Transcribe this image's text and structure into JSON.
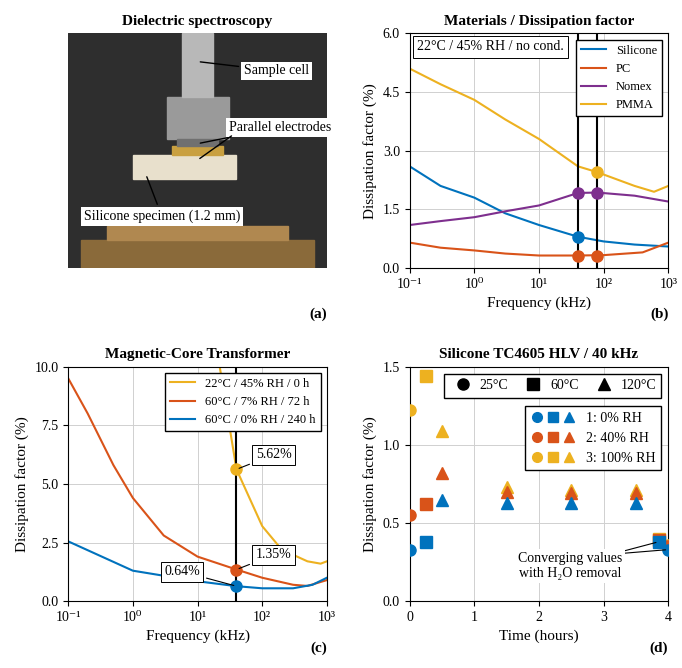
{
  "chart_data": [
    {
      "type": "image",
      "title": "Dielectric spectroscopy",
      "panel": "(a)",
      "annotations": [
        {
          "text": "Sample cell"
        },
        {
          "text": "Parallel electrodes"
        },
        {
          "text": "Silicone specimen (1.2 mm)"
        }
      ]
    },
    {
      "type": "line",
      "title": "Materials / Dissipation factor",
      "panel": "(b)",
      "x_label": "Frequency (kHz)",
      "y_label": "Dissipation factor (%)",
      "note": "22°C / 45% RH / no cond.",
      "log": "x",
      "grid": true,
      "legend": "upper right",
      "xlim": [
        0.1,
        1000
      ],
      "ylim": [
        0.0,
        6.0
      ],
      "xticks": [
        {
          "value": 0.1,
          "label": "10⁻¹"
        },
        {
          "value": 1,
          "label": "10⁰"
        },
        {
          "value": 10,
          "label": "10¹"
        },
        {
          "value": 100,
          "label": "10²"
        },
        {
          "value": 1000,
          "label": "10³"
        }
      ],
      "yticks": [
        0.0,
        1.5,
        3.0,
        4.5,
        6.0
      ],
      "vlines": [
        40,
        80
      ],
      "series": [
        {
          "name": "Silicone",
          "color": "#0072bd",
          "x": [
            0.1,
            0.3,
            1,
            3,
            10,
            40,
            100,
            300,
            1000
          ],
          "values": [
            2.6,
            2.1,
            1.8,
            1.4,
            1.1,
            0.8,
            0.68,
            0.6,
            0.55
          ],
          "points": [
            {
              "x": 40,
              "y": 0.8
            }
          ]
        },
        {
          "name": "PC",
          "color": "#d95319",
          "x": [
            0.1,
            0.3,
            1,
            3,
            10,
            40,
            100,
            400,
            1000
          ],
          "values": [
            0.65,
            0.52,
            0.45,
            0.37,
            0.32,
            0.32,
            0.33,
            0.4,
            0.65
          ],
          "points": [
            {
              "x": 40,
              "y": 0.32
            },
            {
              "x": 80,
              "y": 0.32
            }
          ]
        },
        {
          "name": "Nomex",
          "color": "#7e2f8e",
          "x": [
            0.1,
            0.3,
            1,
            3,
            10,
            40,
            80,
            300,
            1000
          ],
          "values": [
            1.1,
            1.2,
            1.3,
            1.45,
            1.6,
            1.92,
            1.93,
            1.85,
            1.7
          ],
          "points": [
            {
              "x": 40,
              "y": 1.92
            },
            {
              "x": 80,
              "y": 1.93
            }
          ]
        },
        {
          "name": "PMMA",
          "color": "#edb120",
          "x": [
            0.1,
            0.3,
            1,
            3,
            10,
            40,
            80,
            300,
            600,
            1000
          ],
          "values": [
            5.1,
            4.7,
            4.3,
            3.8,
            3.3,
            2.6,
            2.45,
            2.1,
            1.95,
            2.1
          ],
          "points": [
            {
              "x": 80,
              "y": 2.45
            }
          ]
        }
      ]
    },
    {
      "type": "line",
      "title": "Magnetic-Core Transformer",
      "panel": "(c)",
      "x_label": "Frequency (kHz)",
      "y_label": "Dissipation factor (%)",
      "log": "x",
      "grid": true,
      "legend": "upper right",
      "xlim": [
        0.1,
        1000
      ],
      "ylim": [
        0.0,
        10.0
      ],
      "xticks": [
        {
          "value": 0.1,
          "label": "10⁻¹"
        },
        {
          "value": 1,
          "label": "10⁰"
        },
        {
          "value": 10,
          "label": "10¹"
        },
        {
          "value": 100,
          "label": "10²"
        },
        {
          "value": 1000,
          "label": "10³"
        }
      ],
      "yticks": [
        0.0,
        2.5,
        5.0,
        7.5,
        10.0
      ],
      "vlines": [
        40
      ],
      "series": [
        {
          "name": "22°C / 45% RH / 0 h",
          "color": "#edb120",
          "x": [
            22,
            40,
            100,
            200,
            500,
            800,
            1000
          ],
          "values": [
            10.0,
            5.62,
            3.2,
            2.2,
            1.7,
            1.6,
            1.7
          ],
          "points": [
            {
              "x": 40,
              "y": 5.62
            }
          ]
        },
        {
          "name": "60°C / 7% RH / 72 h",
          "color": "#d95319",
          "x": [
            0.1,
            0.2,
            0.5,
            1,
            3,
            10,
            40,
            100,
            300,
            500,
            1000
          ],
          "values": [
            9.5,
            8.0,
            5.8,
            4.4,
            2.8,
            1.9,
            1.35,
            1.0,
            0.7,
            0.65,
            0.9
          ],
          "points": [
            {
              "x": 40,
              "y": 1.35
            }
          ]
        },
        {
          "name": "60°C / 0% RH / 240 h",
          "color": "#0072bd",
          "x": [
            0.1,
            1,
            10,
            40,
            100,
            300,
            600,
            1000
          ],
          "values": [
            2.55,
            1.3,
            0.85,
            0.64,
            0.55,
            0.55,
            0.7,
            1.0
          ],
          "points": [
            {
              "x": 40,
              "y": 0.64
            }
          ]
        }
      ],
      "annotations": [
        {
          "x": 40,
          "y": 5.62,
          "text": "5.62%"
        },
        {
          "x": 40,
          "y": 1.35,
          "text": "1.35%"
        },
        {
          "x": 40,
          "y": 0.64,
          "text": "0.64%"
        }
      ]
    },
    {
      "type": "scatter",
      "title": "Silicone TC4605 HLV / 40 kHz",
      "panel": "(d)",
      "x_label": "Time (hours)",
      "y_label": "Dissipation factor (%)",
      "grid": true,
      "legend": "upper right",
      "xlim": [
        0,
        4
      ],
      "ylim": [
        0.0,
        1.5
      ],
      "xticks": [
        0,
        1,
        2,
        3,
        4
      ],
      "yticks": [
        0.0,
        0.5,
        1.0,
        1.5
      ],
      "marker_legend": [
        {
          "marker": "circle",
          "label": "25°C"
        },
        {
          "marker": "square",
          "label": "60°C"
        },
        {
          "marker": "triangle",
          "label": "120°C"
        }
      ],
      "series": [
        {
          "key": "3:",
          "name": "100% RH",
          "color": "#edb120",
          "x": [
            0,
            0.25,
            0.5,
            1.5,
            2.5,
            3.5,
            3.85,
            4
          ],
          "values": [
            1.22,
            1.44,
            1.09,
            0.73,
            0.71,
            0.71,
            0.4,
            0.36
          ],
          "markers": [
            "circle",
            "square",
            "triangle",
            "triangle",
            "triangle",
            "triangle",
            "square",
            "circle"
          ]
        },
        {
          "key": "2:",
          "name": "40% RH",
          "color": "#d95319",
          "x": [
            0,
            0.25,
            0.5,
            1.5,
            2.5,
            3.5,
            3.85,
            4
          ],
          "values": [
            0.55,
            0.62,
            0.82,
            0.7,
            0.69,
            0.69,
            0.39,
            0.35
          ],
          "markers": [
            "circle",
            "square",
            "triangle",
            "triangle",
            "triangle",
            "triangle",
            "square",
            "circle"
          ]
        },
        {
          "key": "1:",
          "name": "0% RH",
          "color": "#0072bd",
          "x": [
            0,
            0.25,
            0.5,
            1.5,
            2.5,
            3.5,
            3.85,
            4
          ],
          "values": [
            0.33,
            0.38,
            0.65,
            0.63,
            0.63,
            0.63,
            0.38,
            0.33
          ],
          "markers": [
            "circle",
            "square",
            "triangle",
            "triangle",
            "triangle",
            "triangle",
            "square",
            "circle"
          ]
        }
      ],
      "annotations": [
        {
          "text": "Converging values\nwith H₂O removal",
          "targets": [
            [
              3.85,
              0.38
            ],
            [
              4,
              0.33
            ]
          ]
        }
      ]
    }
  ]
}
